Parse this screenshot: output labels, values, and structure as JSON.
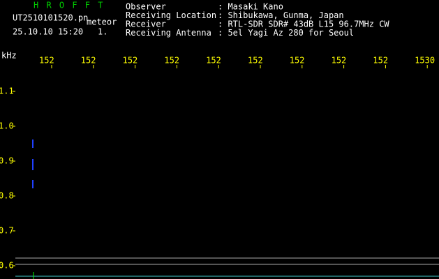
{
  "header": {
    "app": "H R O F F T",
    "file": "UT2510101520.pn",
    "mode": "meteor",
    "datetime": "25.10.10 15:20",
    "page": "1.",
    "info": [
      [
        "Observer",
        ": Masaki Kano"
      ],
      [
        "Receiving Location",
        ": Shibukawa, Gunma, Japan"
      ],
      [
        "Receiver",
        ": RTL-SDR SDR# 43dB L15 96.7MHz CW"
      ],
      [
        "Receiving Antenna",
        ": 5el Yagi Az 280 for Seoul"
      ]
    ]
  },
  "axes": {
    "y_unit": "kHz",
    "x_labels": [
      "152",
      "152",
      "152",
      "152",
      "152",
      "152",
      "152",
      "152",
      "152",
      "1530"
    ],
    "y_labels": [
      "1.1",
      "1.0",
      "0.9",
      "0.8",
      "0.7",
      "0.6"
    ]
  }
}
